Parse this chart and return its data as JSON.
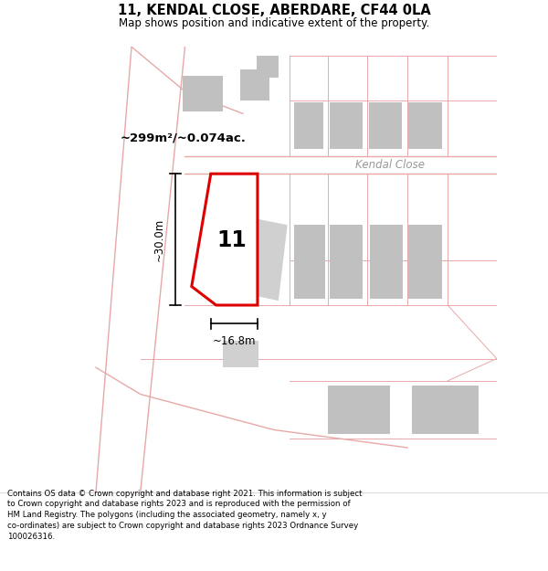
{
  "title": "11, KENDAL CLOSE, ABERDARE, CF44 0LA",
  "subtitle": "Map shows position and indicative extent of the property.",
  "footer": "Contains OS data © Crown copyright and database right 2021. This information is subject to Crown copyright and database rights 2023 and is reproduced with the permission of HM Land Registry. The polygons (including the associated geometry, namely x, y co-ordinates) are subject to Crown copyright and database rights 2023 Ordnance Survey 100026316.",
  "area_label": "~299m²/~0.074ac.",
  "number_label": "11",
  "street_label": "Kendal Close",
  "dim_height": "~30.0m",
  "dim_width": "~16.8m",
  "red_line_color": "#dd0000",
  "pink_line_color": "#e8a8a8",
  "gray_block_color": "#c0c0c0",
  "light_gray_block_color": "#d0d0d0",
  "map_bg_color": "#ffffff",
  "header_bg": "#ffffff",
  "footer_text_color": "#000000"
}
